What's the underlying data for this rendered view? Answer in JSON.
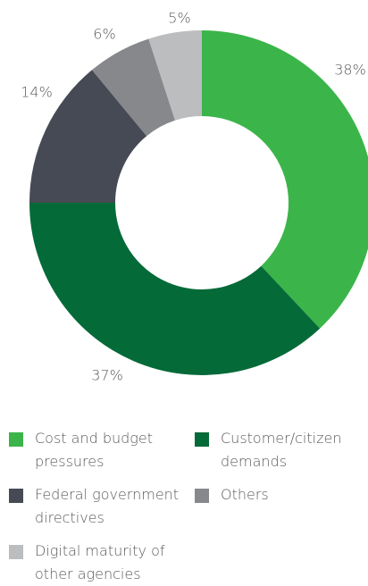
{
  "chart_data": {
    "type": "donut",
    "categories": [
      "Cost and budget pressures",
      "Customer/citizen demands",
      "Federal government directives",
      "Others",
      "Digital maturity of other agencies"
    ],
    "values": [
      38,
      37,
      14,
      6,
      5
    ],
    "value_labels": [
      "38%",
      "37%",
      "14%",
      "6%",
      "5%"
    ],
    "colors": [
      "#3bb54a",
      "#046a38",
      "#464a54",
      "#86888c",
      "#bbbdbf"
    ]
  }
}
